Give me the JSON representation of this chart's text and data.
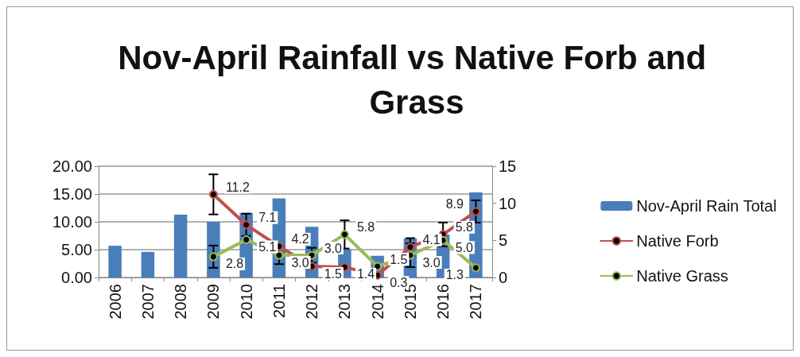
{
  "chart_data": {
    "type": "bar",
    "title": "Nov-April Rainfall vs Native Forb and Grass",
    "categories": [
      "2006",
      "2007",
      "2008",
      "2009",
      "2010",
      "2011",
      "2012",
      "2013",
      "2014",
      "2015",
      "2016",
      "2017"
    ],
    "series": [
      {
        "name": "Nov-April Rain Total",
        "color": "#4a7ebb",
        "values": [
          5.7,
          4.6,
          11.3,
          10.0,
          11.6,
          14.2,
          9.1,
          5.1,
          3.9,
          7.0,
          7.7,
          15.3
        ]
      },
      {
        "name": "Native Forb",
        "type": "line",
        "axis": "y2",
        "color": "#c0504d",
        "values": [
          null,
          null,
          null,
          11.2,
          7.1,
          4.2,
          1.5,
          1.4,
          0.3,
          4.1,
          5.8,
          8.9
        ],
        "value_labels": [
          null,
          null,
          null,
          "11.2",
          "7.1",
          "4.2",
          "1.5",
          "1.4",
          "0.3",
          "4.1",
          "5.8",
          "8.9"
        ],
        "errors": [
          null,
          null,
          null,
          2.7,
          1.5,
          null,
          null,
          null,
          null,
          1.2,
          1.6,
          1.5
        ]
      },
      {
        "name": "Native Grass",
        "type": "line",
        "axis": "y2",
        "color": "#9bbb59",
        "values": [
          null,
          null,
          null,
          2.8,
          5.1,
          3.0,
          3.0,
          5.8,
          1.5,
          3.0,
          5.0,
          1.3
        ],
        "value_labels": [
          null,
          null,
          null,
          "2.8",
          "5.1",
          "3.0",
          "3.0",
          "5.8",
          "1.5",
          "3.0",
          "5.0",
          "1.3"
        ],
        "errors": [
          null,
          null,
          null,
          1.5,
          null,
          1.2,
          1.0,
          1.9,
          null,
          1.6,
          null,
          null
        ]
      }
    ],
    "ylim": [
      0,
      20
    ],
    "yticks": [
      {
        "value": 0,
        "label": "0.00"
      },
      {
        "value": 5,
        "label": "5.00"
      },
      {
        "value": 10,
        "label": "10.00"
      },
      {
        "value": 15,
        "label": "15.00"
      },
      {
        "value": 20,
        "label": "20.00"
      }
    ],
    "y2lim": [
      0,
      15
    ],
    "y2ticks": [
      0,
      5,
      10,
      15
    ],
    "grid": "y",
    "legend": "right",
    "marker": "circle",
    "line_style": "solid"
  }
}
